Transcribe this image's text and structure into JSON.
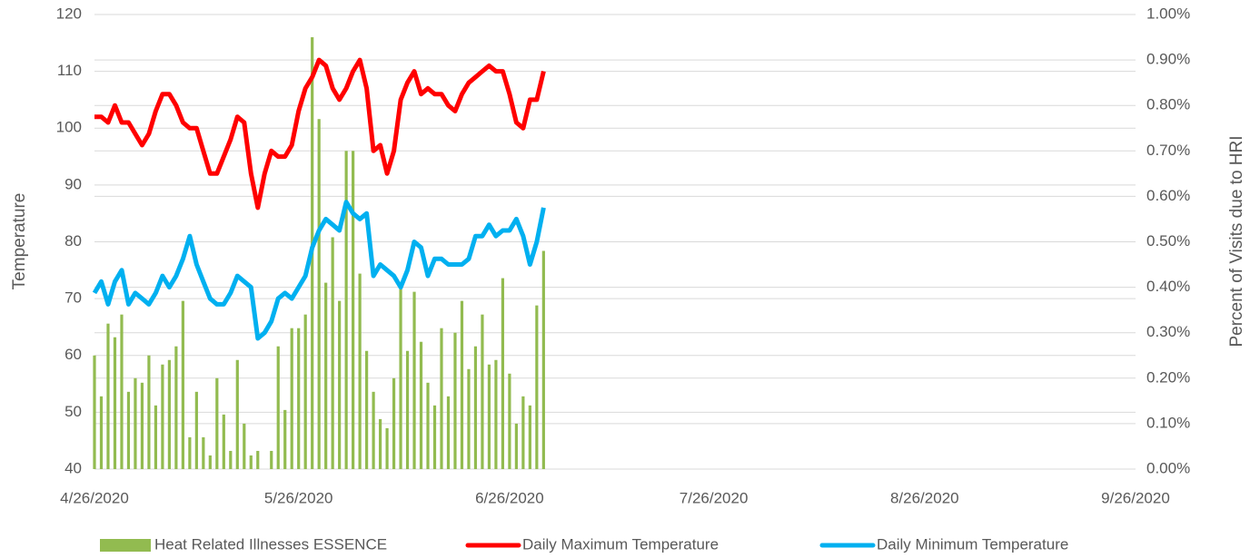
{
  "chart_data": {
    "type": "bar-line",
    "y_label": "Temperature",
    "y2_label": "Percent of Visits due to HRI",
    "x": [
      "4/26/2020",
      "4/27/2020",
      "4/28/2020",
      "4/29/2020",
      "4/30/2020",
      "5/1/2020",
      "5/2/2020",
      "5/3/2020",
      "5/4/2020",
      "5/5/2020",
      "5/6/2020",
      "5/7/2020",
      "5/8/2020",
      "5/9/2020",
      "5/10/2020",
      "5/11/2020",
      "5/12/2020",
      "5/13/2020",
      "5/14/2020",
      "5/15/2020",
      "5/16/2020",
      "5/17/2020",
      "5/18/2020",
      "5/19/2020",
      "5/20/2020",
      "5/21/2020",
      "5/22/2020",
      "5/23/2020",
      "5/24/2020",
      "5/25/2020",
      "5/26/2020",
      "5/27/2020",
      "5/28/2020",
      "5/29/2020",
      "5/30/2020",
      "5/31/2020",
      "6/1/2020",
      "6/2/2020",
      "6/3/2020",
      "6/4/2020",
      "6/5/2020",
      "6/6/2020",
      "6/7/2020",
      "6/8/2020",
      "6/9/2020",
      "6/10/2020",
      "6/11/2020",
      "6/12/2020",
      "6/13/2020",
      "6/14/2020",
      "6/15/2020",
      "6/16/2020",
      "6/17/2020",
      "6/18/2020",
      "6/19/2020",
      "6/20/2020",
      "6/21/2020",
      "6/22/2020",
      "6/23/2020",
      "6/24/2020",
      "6/25/2020",
      "6/26/2020",
      "6/27/2020",
      "6/28/2020",
      "6/29/2020",
      "6/30/2020",
      "7/1/2020"
    ],
    "xlim": [
      "4/26/2020",
      "9/26/2020"
    ],
    "xticks": [
      "4/26/2020",
      "5/26/2020",
      "6/26/2020",
      "7/26/2020",
      "8/26/2020",
      "9/26/2020"
    ],
    "ylim": [
      40,
      120
    ],
    "yticks": [
      40,
      50,
      60,
      70,
      80,
      90,
      100,
      110,
      120
    ],
    "y2lim": [
      0,
      1
    ],
    "y2ticks": [
      {
        "value": 0,
        "label": "0.00%"
      },
      {
        "value": 0.1,
        "label": "0.10%"
      },
      {
        "value": 0.2,
        "label": "0.20%"
      },
      {
        "value": 0.3,
        "label": "0.30%"
      },
      {
        "value": 0.4,
        "label": "0.40%"
      },
      {
        "value": 0.5,
        "label": "0.50%"
      },
      {
        "value": 0.6,
        "label": "0.60%"
      },
      {
        "value": 0.7,
        "label": "0.70%"
      },
      {
        "value": 0.8,
        "label": "0.80%"
      },
      {
        "value": 0.9,
        "label": "0.90%"
      },
      {
        "value": 1,
        "label": "1.00%"
      }
    ],
    "grid": true,
    "legend": "bottom",
    "series": [
      {
        "name": "Heat Related Illnesses ESSENCE",
        "type": "bar",
        "axis": "y2",
        "color": "#92bb50",
        "values": [
          0.25,
          0.16,
          0.32,
          0.29,
          0.34,
          0.17,
          0.2,
          0.19,
          0.25,
          0.14,
          0.23,
          0.24,
          0.27,
          0.37,
          0.07,
          0.17,
          0.07,
          0.03,
          0.2,
          0.12,
          0.04,
          0.24,
          0.1,
          0.03,
          0.04,
          null,
          0.04,
          0.27,
          0.13,
          0.31,
          0.31,
          0.34,
          0.95,
          0.77,
          0.41,
          0.51,
          0.37,
          0.7,
          0.7,
          0.43,
          0.26,
          0.17,
          0.11,
          0.09,
          0.2,
          0.41,
          0.26,
          0.39,
          0.28,
          0.19,
          0.14,
          0.31,
          0.16,
          0.3,
          0.37,
          0.22,
          0.27,
          0.34,
          0.23,
          0.24,
          0.42,
          0.21,
          0.1,
          0.16,
          0.14,
          0.36,
          0.48
        ]
      },
      {
        "name": "Daily Maximum Temperature",
        "type": "line",
        "color": "#ff0000",
        "values": [
          102,
          102,
          101,
          104,
          101,
          101,
          99,
          97,
          99,
          103,
          106,
          106,
          104,
          101,
          100,
          100,
          96,
          92,
          92,
          95,
          98,
          102,
          101,
          92,
          86,
          92,
          96,
          95,
          95,
          97,
          103,
          107,
          109,
          112,
          111,
          107,
          105,
          107,
          110,
          112,
          107,
          96,
          97,
          92,
          96,
          105,
          108,
          110,
          106,
          107,
          106,
          106,
          104,
          103,
          106,
          108,
          109,
          110,
          111,
          110,
          110,
          106,
          101,
          100,
          105,
          105,
          110
        ]
      },
      {
        "name": "Daily Minimum Temperature",
        "type": "line",
        "color": "#00b0f0",
        "values": [
          71,
          73,
          69,
          73,
          75,
          69,
          71,
          70,
          69,
          71,
          74,
          72,
          74,
          77,
          81,
          76,
          73,
          70,
          69,
          69,
          71,
          74,
          73,
          72,
          63,
          64,
          66,
          70,
          71,
          70,
          72,
          74,
          79,
          82,
          84,
          83,
          82,
          87,
          85,
          84,
          85,
          74,
          76,
          75,
          74,
          72,
          75,
          80,
          79,
          74,
          77,
          77,
          76,
          76,
          76,
          77,
          81,
          81,
          83,
          81,
          82,
          82,
          84,
          81,
          76,
          80,
          86
        ]
      }
    ]
  }
}
